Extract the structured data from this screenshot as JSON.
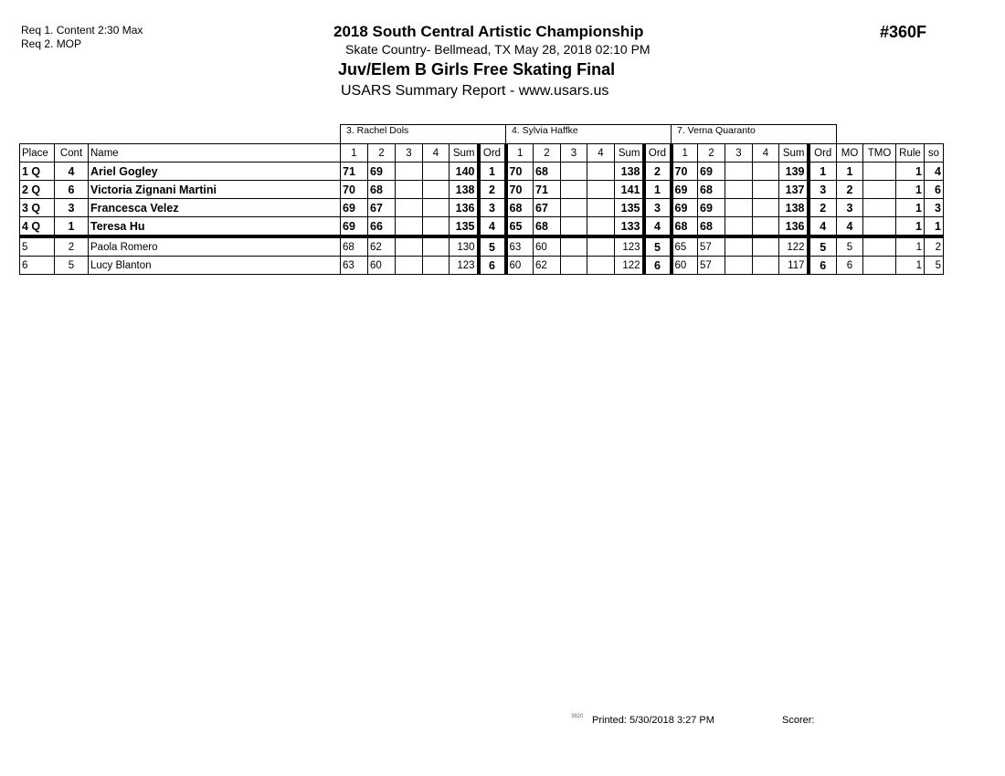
{
  "header": {
    "req1": "Req  1.  Content 2:30 Max",
    "req2": "Req  2.  MOP",
    "event_title": "2018 South Central Artistic Championship",
    "location_date": "Skate Country- Bellmead, TX  May 28, 2018  02:10 PM",
    "event_name": "Juv/Elem B Girls Free Skating Final",
    "report": "USARS Summary Report - www.usars.us",
    "event_number": "#360F"
  },
  "judges": [
    "3.  Rachel Dols",
    "4.  Sylvia Haffke",
    "7.  Verna Quaranto"
  ],
  "columns": {
    "place": "Place",
    "cont": "Cont",
    "name": "Name",
    "judge_cols": [
      "1",
      "2",
      "3",
      "4",
      "Sum",
      "Ord"
    ],
    "mo": "MO",
    "tmo": "TMO",
    "rule": "Rule",
    "so": "so"
  },
  "rows": [
    {
      "place": "1 Q",
      "cont": "4",
      "name": "Ariel Gogley",
      "qualified": true,
      "scores": [
        [
          "71",
          "69",
          "",
          "",
          "140",
          "1"
        ],
        [
          "70",
          "68",
          "",
          "",
          "138",
          "2"
        ],
        [
          "70",
          "69",
          "",
          "",
          "139",
          "1"
        ]
      ],
      "mo": "1",
      "tmo": "",
      "rule": "1",
      "so": "4"
    },
    {
      "place": "2 Q",
      "cont": "6",
      "name": "Victoria Zignani Martini",
      "qualified": true,
      "scores": [
        [
          "70",
          "68",
          "",
          "",
          "138",
          "2"
        ],
        [
          "70",
          "71",
          "",
          "",
          "141",
          "1"
        ],
        [
          "69",
          "68",
          "",
          "",
          "137",
          "3"
        ]
      ],
      "mo": "2",
      "tmo": "",
      "rule": "1",
      "so": "6"
    },
    {
      "place": "3 Q",
      "cont": "3",
      "name": "Francesca Velez",
      "qualified": true,
      "scores": [
        [
          "69",
          "67",
          "",
          "",
          "136",
          "3"
        ],
        [
          "68",
          "67",
          "",
          "",
          "135",
          "3"
        ],
        [
          "69",
          "69",
          "",
          "",
          "138",
          "2"
        ]
      ],
      "mo": "3",
      "tmo": "",
      "rule": "1",
      "so": "3"
    },
    {
      "place": "4 Q",
      "cont": "1",
      "name": "Teresa Hu",
      "qualified": true,
      "scores": [
        [
          "69",
          "66",
          "",
          "",
          "135",
          "4"
        ],
        [
          "65",
          "68",
          "",
          "",
          "133",
          "4"
        ],
        [
          "68",
          "68",
          "",
          "",
          "136",
          "4"
        ]
      ],
      "mo": "4",
      "tmo": "",
      "rule": "1",
      "so": "1"
    },
    {
      "place": "5",
      "cont": "2",
      "name": "Paola Romero",
      "qualified": false,
      "scores": [
        [
          "68",
          "62",
          "",
          "",
          "130",
          "5"
        ],
        [
          "63",
          "60",
          "",
          "",
          "123",
          "5"
        ],
        [
          "65",
          "57",
          "",
          "",
          "122",
          "5"
        ]
      ],
      "mo": "5",
      "tmo": "",
      "rule": "1",
      "so": "2"
    },
    {
      "place": "6",
      "cont": "5",
      "name": "Lucy Blanton",
      "qualified": false,
      "scores": [
        [
          "63",
          "60",
          "",
          "",
          "123",
          "6"
        ],
        [
          "60",
          "62",
          "",
          "",
          "122",
          "6"
        ],
        [
          "60",
          "57",
          "",
          "",
          "117",
          "6"
        ]
      ],
      "mo": "6",
      "tmo": "",
      "rule": "1",
      "so": "5"
    }
  ],
  "footer": {
    "code": "3820",
    "printed": "Printed:  5/30/2018  3:27 PM",
    "scorer": "Scorer:"
  }
}
